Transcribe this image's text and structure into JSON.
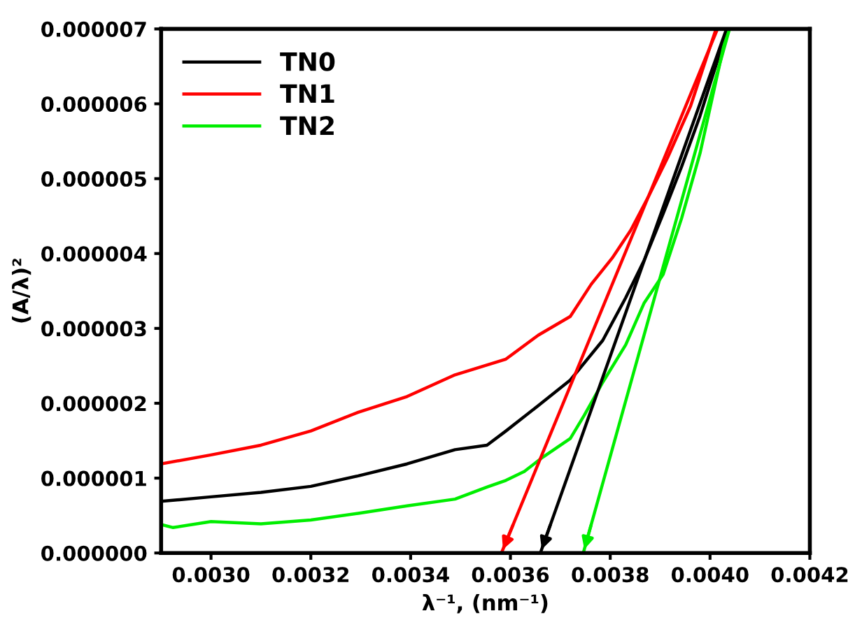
{
  "chart_data": {
    "type": "line",
    "xlabel": "λ⁻¹, (nm⁻¹)",
    "ylabel": "(A/λ)²",
    "xlim": [
      0.0029,
      0.0042
    ],
    "ylim": [
      0,
      7e-06
    ],
    "xticks": [
      {
        "value": 0.003,
        "label": "0.0030"
      },
      {
        "value": 0.0032,
        "label": "0.0032"
      },
      {
        "value": 0.0034,
        "label": "0.0034"
      },
      {
        "value": 0.0036,
        "label": "0.0036"
      },
      {
        "value": 0.0038,
        "label": "0.0038"
      },
      {
        "value": 0.004,
        "label": "0.0040"
      },
      {
        "value": 0.0042,
        "label": "0.0042"
      }
    ],
    "yticks": [
      {
        "value": 0,
        "label": "0.000000"
      },
      {
        "value": 1e-06,
        "label": "0.000001"
      },
      {
        "value": 2e-06,
        "label": "0.000002"
      },
      {
        "value": 3e-06,
        "label": "0.000003"
      },
      {
        "value": 4e-06,
        "label": "0.000004"
      },
      {
        "value": 5e-06,
        "label": "0.000005"
      },
      {
        "value": 6e-06,
        "label": "0.000006"
      },
      {
        "value": 7e-06,
        "label": "0.000007"
      }
    ],
    "grid": false,
    "legend": "top left",
    "marker": "none",
    "line_style": "solid",
    "series": [
      {
        "name": "TN0",
        "color": "#000000",
        "x": [
          0.0029,
          0.003,
          0.0031,
          0.0032,
          0.003295,
          0.003393,
          0.003489,
          0.003553,
          0.003591,
          0.003656,
          0.00372,
          0.003785,
          0.003831,
          0.003868,
          0.003906,
          0.003943,
          0.00398,
          0.004035
        ],
        "values": [
          6.9e-07,
          7.5e-07,
          8.1e-07,
          8.9e-07,
          1.03e-06,
          1.19e-06,
          1.38e-06,
          1.44e-06,
          1.63e-06,
          1.97e-06,
          2.31e-06,
          2.84e-06,
          3.41e-06,
          3.91e-06,
          4.53e-06,
          5.16e-06,
          5.84e-06,
          7e-06
        ]
      },
      {
        "name": "TN1",
        "color": "#ff0000",
        "x": [
          0.0029,
          0.003,
          0.0031,
          0.0032,
          0.003295,
          0.003393,
          0.003489,
          0.003591,
          0.003656,
          0.00372,
          0.003762,
          0.003804,
          0.003841,
          0.003878,
          0.003915,
          0.003961,
          0.004012
        ],
        "values": [
          1.19e-06,
          1.31e-06,
          1.44e-06,
          1.63e-06,
          1.88e-06,
          2.09e-06,
          2.38e-06,
          2.59e-06,
          2.91e-06,
          3.16e-06,
          3.59e-06,
          3.94e-06,
          4.31e-06,
          4.78e-06,
          5.28e-06,
          5.97e-06,
          7e-06
        ]
      },
      {
        "name": "TN2",
        "color": "#00ee00",
        "x": [
          0.0029,
          0.002924,
          0.003,
          0.0031,
          0.0032,
          0.003295,
          0.003393,
          0.003489,
          0.003553,
          0.003591,
          0.003628,
          0.003665,
          0.00372,
          0.003748,
          0.003785,
          0.003831,
          0.003868,
          0.003906,
          0.003943,
          0.00398,
          0.004035
        ],
        "values": [
          3.8e-07,
          3.4e-07,
          4.2e-07,
          3.9e-07,
          4.4e-07,
          5.3e-07,
          6.3e-07,
          7.2e-07,
          8.8e-07,
          9.7e-07,
          1.09e-06,
          1.28e-06,
          1.53e-06,
          1.84e-06,
          2.28e-06,
          2.78e-06,
          3.34e-06,
          3.72e-06,
          4.47e-06,
          5.34e-06,
          7e-06
        ]
      },
      {
        "color": "#ff0000",
        "x": [
          0.003582,
          0.004015
        ],
        "values": [
          0,
          7e-06
        ]
      },
      {
        "color": "#000000",
        "x": [
          0.00366,
          0.004033
        ],
        "values": [
          0,
          7e-06
        ]
      },
      {
        "color": "#00ee00",
        "x": [
          0.003746,
          0.004039
        ],
        "values": [
          0,
          7e-06
        ]
      }
    ]
  }
}
